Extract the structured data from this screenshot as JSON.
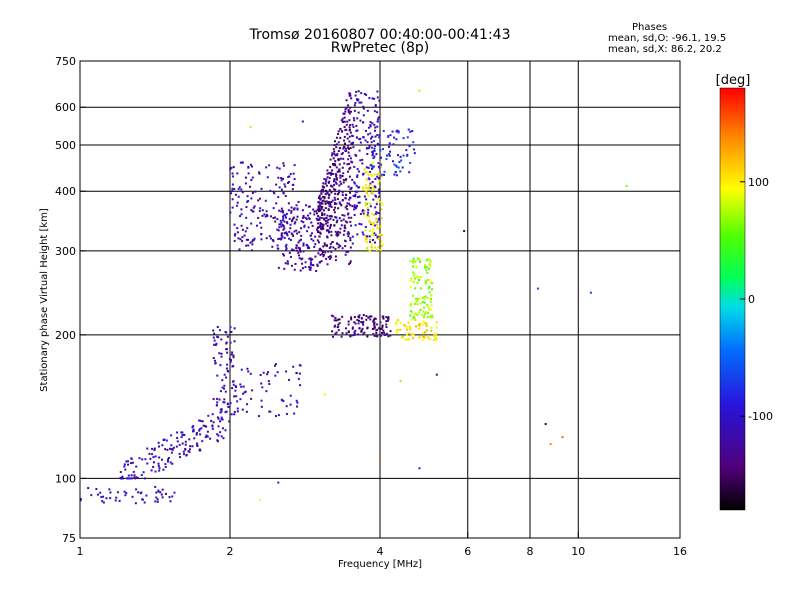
{
  "chart_data": {
    "type": "scatter",
    "title": "Tromsø 20160807 00:40:00-00:41:43",
    "subtitle": "RwPretec (8p)",
    "xlabel": "Frequency [MHz]",
    "ylabel": "Stationary phase Virtual Height [km]",
    "x_scale": "log",
    "y_scale": "log",
    "xlim": [
      1,
      16
    ],
    "ylim": [
      75,
      750
    ],
    "x_ticks": [
      1,
      2,
      4,
      6,
      8,
      10,
      16
    ],
    "y_ticks": [
      75,
      100,
      200,
      300,
      400,
      500,
      600,
      750
    ],
    "grid": true,
    "phase_stats": {
      "header": "Phases",
      "line_o": "mean, sd,O: -96.1, 19.5",
      "line_x": "mean, sd,X: 86.2, 20.2"
    },
    "colorbar": {
      "label": "[deg]",
      "range": [
        -180,
        180
      ],
      "ticks": [
        100,
        0,
        -100
      ],
      "tick_labels": [
        "100",
        "0",
        "-100"
      ]
    },
    "clusters": [
      {
        "f_range": [
          1.0,
          1.55
        ],
        "h_range": [
          88,
          96
        ],
        "phase": -110,
        "n": 50,
        "shape": "band"
      },
      {
        "f_range": [
          1.2,
          2.0
        ],
        "h_range": [
          100,
          140
        ],
        "phase": -110,
        "n": 170,
        "shape": "rise"
      },
      {
        "f_range": [
          1.85,
          2.05
        ],
        "h_range": [
          140,
          210
        ],
        "phase": -115,
        "n": 70,
        "shape": "box"
      },
      {
        "f_range": [
          2.0,
          2.8
        ],
        "h_range": [
          135,
          175
        ],
        "phase": -110,
        "n": 70,
        "shape": "box"
      },
      {
        "f_range": [
          2.0,
          2.7
        ],
        "h_range": [
          300,
          460
        ],
        "phase": -115,
        "n": 170,
        "shape": "box"
      },
      {
        "f_range": [
          2.5,
          3.0
        ],
        "h_range": [
          272,
          380
        ],
        "phase": -120,
        "n": 160,
        "shape": "box"
      },
      {
        "f_range": [
          3.0,
          3.5
        ],
        "h_range": [
          275,
          660
        ],
        "phase": -135,
        "n": 420,
        "shape": "cusp"
      },
      {
        "f_range": [
          3.5,
          4.0
        ],
        "h_range": [
          310,
          650
        ],
        "phase": -110,
        "n": 200,
        "shape": "box"
      },
      {
        "f_range": [
          3.7,
          4.05
        ],
        "h_range": [
          300,
          460
        ],
        "phase": 100,
        "n": 90,
        "shape": "box"
      },
      {
        "f_range": [
          3.8,
          4.7
        ],
        "h_range": [
          430,
          540
        ],
        "phase": -80,
        "n": 70,
        "shape": "box"
      },
      {
        "f_range": [
          3.2,
          4.2
        ],
        "h_range": [
          198,
          220
        ],
        "phase": -140,
        "n": 120,
        "shape": "box"
      },
      {
        "f_range": [
          4.3,
          5.2
        ],
        "h_range": [
          195,
          215
        ],
        "phase": 105,
        "n": 70,
        "shape": "box"
      },
      {
        "f_range": [
          4.6,
          5.1
        ],
        "h_range": [
          215,
          290
        ],
        "phase": 70,
        "n": 110,
        "shape": "box"
      }
    ],
    "isolated_points": [
      {
        "f": 10.6,
        "h": 245,
        "phase": -60
      },
      {
        "f": 12.5,
        "h": 410,
        "phase": 60
      },
      {
        "f": 8.3,
        "h": 250,
        "phase": -60
      },
      {
        "f": 8.6,
        "h": 130,
        "phase": -160
      },
      {
        "f": 8.8,
        "h": 118,
        "phase": 140
      },
      {
        "f": 9.3,
        "h": 122,
        "phase": 150
      },
      {
        "f": 4.0,
        "h": 110,
        "phase": 150
      },
      {
        "f": 5.2,
        "h": 165,
        "phase": -140
      },
      {
        "f": 4.4,
        "h": 160,
        "phase": 70
      },
      {
        "f": 2.5,
        "h": 98,
        "phase": -80
      },
      {
        "f": 2.3,
        "h": 90,
        "phase": 90
      },
      {
        "f": 5.9,
        "h": 330,
        "phase": -150
      },
      {
        "f": 2.2,
        "h": 545,
        "phase": 110
      },
      {
        "f": 4.8,
        "h": 650,
        "phase": 110
      },
      {
        "f": 2.8,
        "h": 560,
        "phase": -100
      },
      {
        "f": 3.1,
        "h": 150,
        "phase": 100
      },
      {
        "f": 4.8,
        "h": 105,
        "phase": -90
      }
    ]
  }
}
